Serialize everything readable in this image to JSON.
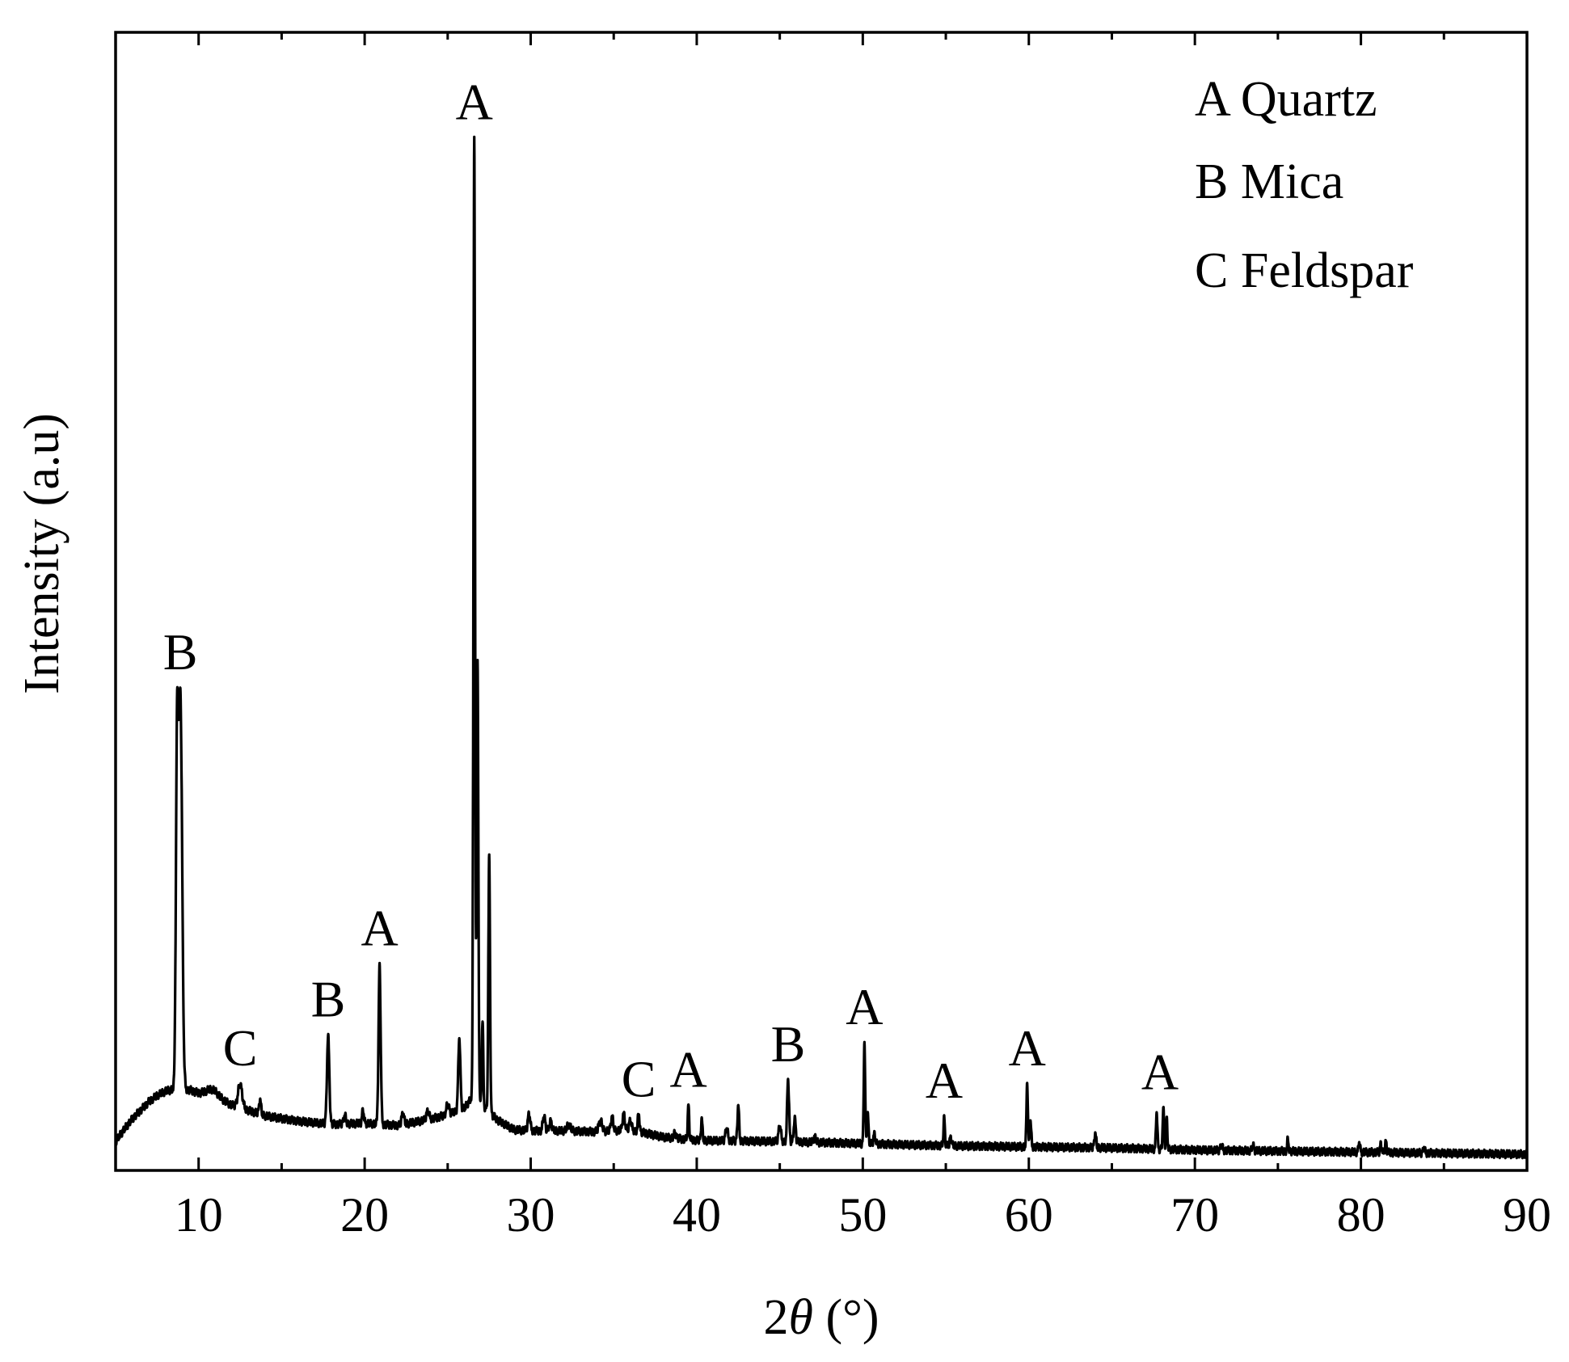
{
  "chart_data": {
    "type": "line",
    "xlabel": {
      "prefix": "2",
      "theta": "θ",
      "suffix": " (°)"
    },
    "ylabel": "Intensity (a.u)",
    "xlim": [
      5,
      90
    ],
    "ylim": [
      0,
      100
    ],
    "x_ticks": [
      10,
      20,
      30,
      40,
      50,
      60,
      70,
      80,
      90
    ],
    "y_tick_labels": false,
    "grid": false,
    "line_color": "#000000",
    "legend": {
      "placement": "top-right",
      "entries": [
        "A Quartz",
        "B Mica",
        "C Feldspar"
      ]
    },
    "baseline": [
      [
        5.0,
        1.5
      ],
      [
        5.5,
        2.6
      ],
      [
        6.0,
        3.6
      ],
      [
        6.5,
        4.4
      ],
      [
        7.0,
        5.2
      ],
      [
        7.5,
        5.8
      ],
      [
        8.0,
        6.2
      ],
      [
        8.5,
        6.4
      ],
      [
        9.5,
        6.3
      ],
      [
        10.0,
        6.0
      ],
      [
        11.0,
        5.7
      ],
      [
        12.0,
        4.9
      ],
      [
        13.0,
        4.4
      ],
      [
        14.0,
        3.9
      ],
      [
        16.0,
        3.4
      ],
      [
        18.0,
        3.1
      ],
      [
        20.0,
        3.2
      ],
      [
        22.0,
        3.0
      ],
      [
        24.0,
        3.6
      ],
      [
        25.0,
        4.0
      ],
      [
        26.0,
        4.6
      ],
      [
        26.4,
        5.5
      ],
      [
        27.0,
        5.0
      ],
      [
        28.0,
        3.5
      ],
      [
        29.0,
        2.6
      ],
      [
        30.0,
        2.5
      ],
      [
        32.0,
        2.5
      ],
      [
        34.0,
        2.4
      ],
      [
        36.0,
        2.6
      ],
      [
        38.0,
        1.9
      ],
      [
        40.0,
        1.6
      ],
      [
        45.0,
        1.5
      ],
      [
        50.0,
        1.3
      ],
      [
        55.0,
        1.1
      ],
      [
        60.0,
        1.0
      ],
      [
        65.0,
        0.9
      ],
      [
        70.0,
        0.7
      ],
      [
        75.0,
        0.6
      ],
      [
        80.0,
        0.5
      ],
      [
        85.0,
        0.4
      ],
      [
        90.0,
        0.3
      ]
    ],
    "peaks": [
      [
        8.7,
        30.0,
        0.1
      ],
      [
        8.9,
        37.0,
        0.15
      ],
      [
        10.8,
        0.6,
        0.5
      ],
      [
        12.5,
        2.2,
        0.18
      ],
      [
        13.7,
        1.4,
        0.08
      ],
      [
        17.8,
        8.2,
        0.1
      ],
      [
        18.8,
        0.8,
        0.1
      ],
      [
        19.9,
        1.2,
        0.08
      ],
      [
        20.9,
        14.8,
        0.09
      ],
      [
        22.3,
        1.1,
        0.1
      ],
      [
        23.8,
        0.8,
        0.12
      ],
      [
        25.0,
        1.0,
        0.12
      ],
      [
        25.7,
        6.8,
        0.09
      ],
      [
        26.6,
        90.0,
        0.07
      ],
      [
        26.8,
        41.0,
        0.07
      ],
      [
        27.1,
        8.0,
        0.06
      ],
      [
        27.5,
        24.0,
        0.07
      ],
      [
        29.9,
        1.6,
        0.1
      ],
      [
        30.8,
        1.4,
        0.1
      ],
      [
        31.2,
        0.9,
        0.1
      ],
      [
        32.3,
        0.6,
        0.15
      ],
      [
        34.2,
        1.0,
        0.15
      ],
      [
        34.9,
        1.3,
        0.1
      ],
      [
        35.6,
        1.5,
        0.1
      ],
      [
        36.0,
        0.9,
        0.1
      ],
      [
        36.5,
        1.7,
        0.07
      ],
      [
        38.7,
        0.5,
        0.1
      ],
      [
        39.5,
        3.2,
        0.06
      ],
      [
        40.3,
        2.1,
        0.06
      ],
      [
        41.8,
        1.2,
        0.1
      ],
      [
        42.5,
        3.4,
        0.07
      ],
      [
        45.0,
        1.5,
        0.1
      ],
      [
        45.5,
        5.9,
        0.08
      ],
      [
        45.9,
        2.2,
        0.08
      ],
      [
        47.1,
        0.5,
        0.1
      ],
      [
        50.1,
        9.6,
        0.06
      ],
      [
        50.3,
        2.8,
        0.06
      ],
      [
        50.7,
        0.9,
        0.08
      ],
      [
        54.9,
        2.6,
        0.06
      ],
      [
        55.3,
        0.8,
        0.08
      ],
      [
        59.9,
        6.1,
        0.06
      ],
      [
        60.1,
        2.5,
        0.06
      ],
      [
        64.0,
        1.4,
        0.07
      ],
      [
        67.7,
        3.5,
        0.06
      ],
      [
        68.1,
        3.7,
        0.06
      ],
      [
        68.3,
        2.8,
        0.06
      ],
      [
        71.6,
        0.5,
        0.08
      ],
      [
        73.5,
        0.5,
        0.08
      ],
      [
        75.6,
        1.1,
        0.06
      ],
      [
        79.9,
        1.0,
        0.06
      ],
      [
        81.2,
        0.8,
        0.06
      ],
      [
        81.5,
        1.0,
        0.06
      ],
      [
        83.8,
        0.6,
        0.06
      ]
    ],
    "peak_labels": [
      {
        "x": 8.9,
        "label": "B"
      },
      {
        "x": 12.5,
        "label": "C"
      },
      {
        "x": 17.8,
        "label": "B"
      },
      {
        "x": 20.9,
        "label": "A"
      },
      {
        "x": 26.6,
        "label": "A"
      },
      {
        "x": 36.5,
        "label": "C"
      },
      {
        "x": 39.5,
        "label": "A"
      },
      {
        "x": 45.5,
        "label": "B"
      },
      {
        "x": 50.1,
        "label": "A"
      },
      {
        "x": 54.9,
        "label": "A"
      },
      {
        "x": 59.9,
        "label": "A"
      },
      {
        "x": 67.9,
        "label": "A"
      }
    ]
  }
}
